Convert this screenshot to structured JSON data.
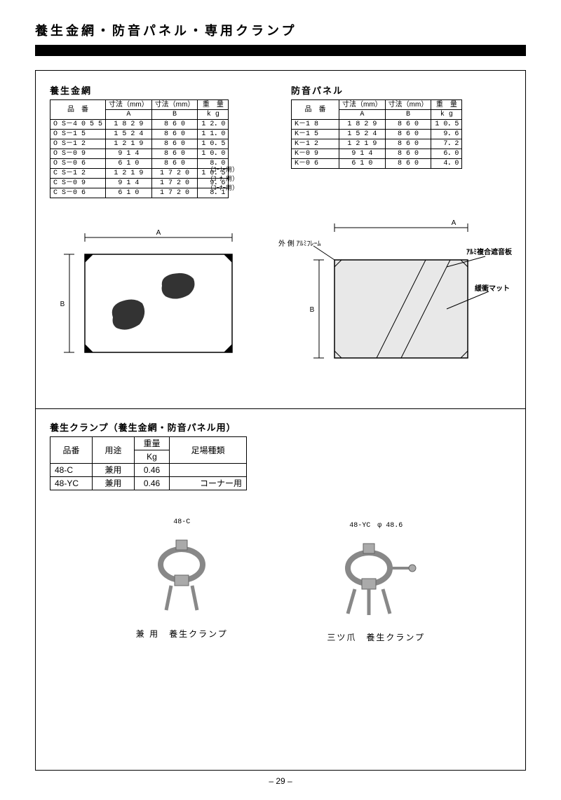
{
  "title": "養生金網・防音パネル・専用クランプ",
  "table1": {
    "title": "養生金網",
    "headers": {
      "product": "品　番",
      "dimA": "寸法（mm）",
      "dimB": "寸法（mm）",
      "weight": "重　量",
      "A": "A",
      "B": "B",
      "kg": "k g"
    },
    "rows": [
      {
        "p": "O S－4 0 5 5",
        "a": "1 8 2 9",
        "b": "8 6 0",
        "w": "1 2．0",
        "note": ""
      },
      {
        "p": "O S－1 5",
        "a": "1 5 2 4",
        "b": "8 6 0",
        "w": "1 1．0",
        "note": ""
      },
      {
        "p": "O S－1 2",
        "a": "1 2 1 9",
        "b": "8 6 0",
        "w": "1 0．5",
        "note": ""
      },
      {
        "p": "O S－0 9",
        "a": "9 1 4",
        "b": "8 6 0",
        "w": "1 0．0",
        "note": ""
      },
      {
        "p": "O S－0 6",
        "a": "6 1 0",
        "b": "8 6 0",
        "w": "8．0",
        "note": ""
      },
      {
        "p": "C S－1 2",
        "a": "1 2 1 9",
        "b": "1 7 2 0",
        "w": "1 0．5",
        "note": "（ｺｰﾅｰ用）"
      },
      {
        "p": "C S－0 9",
        "a": "9 1 4",
        "b": "1 7 2 0",
        "w": "9．6",
        "note": "（ｺｰﾅｰ用）"
      },
      {
        "p": "C S－0 6",
        "a": "6 1 0",
        "b": "1 7 2 0",
        "w": "8．1",
        "note": "（ｺｰﾅｰ用）"
      }
    ]
  },
  "table2": {
    "title": "防音パネル",
    "rows": [
      {
        "p": "K－1 8",
        "a": "1 8 2 9",
        "b": "8 6 0",
        "w": "1 0．5"
      },
      {
        "p": "K－1 5",
        "a": "1 5 2 4",
        "b": "8 6 0",
        "w": "9．6"
      },
      {
        "p": "K－1 2",
        "a": "1 2 1 9",
        "b": "8 6 0",
        "w": "7．2"
      },
      {
        "p": "K－0 9",
        "a": "9 1 4",
        "b": "8 6 0",
        "w": "6．0"
      },
      {
        "p": "K－0 6",
        "a": "6 1 0",
        "b": "8 6 0",
        "w": "4．0"
      }
    ]
  },
  "diagram": {
    "labelA": "A",
    "labelB": "B",
    "outerFrame": "外 側 ｱﾙﾐﾌﾚｰﾑ",
    "compositeBoard": "ｱﾙﾐ複合遮音板",
    "cushionMat": "緩衝マット"
  },
  "table3": {
    "title": "養生クランプ（養生金網・防音パネル用）",
    "headers": {
      "product": "品番",
      "use": "用途",
      "weight": "重量",
      "kg": "Kg",
      "type": "足場種類"
    },
    "rows": [
      {
        "p": "48-C",
        "u": "兼用",
        "w": "0.46",
        "t": ""
      },
      {
        "p": "48-YC",
        "u": "兼用",
        "w": "0.46",
        "t": "コーナー用"
      }
    ]
  },
  "photos": {
    "left": {
      "label": "48-C",
      "caption": "兼 用　養生クランプ"
    },
    "right": {
      "label": "48-YC　φ 48.6",
      "caption": "三ツ爪　養生クランプ"
    }
  },
  "pageNum": "– 29 –"
}
